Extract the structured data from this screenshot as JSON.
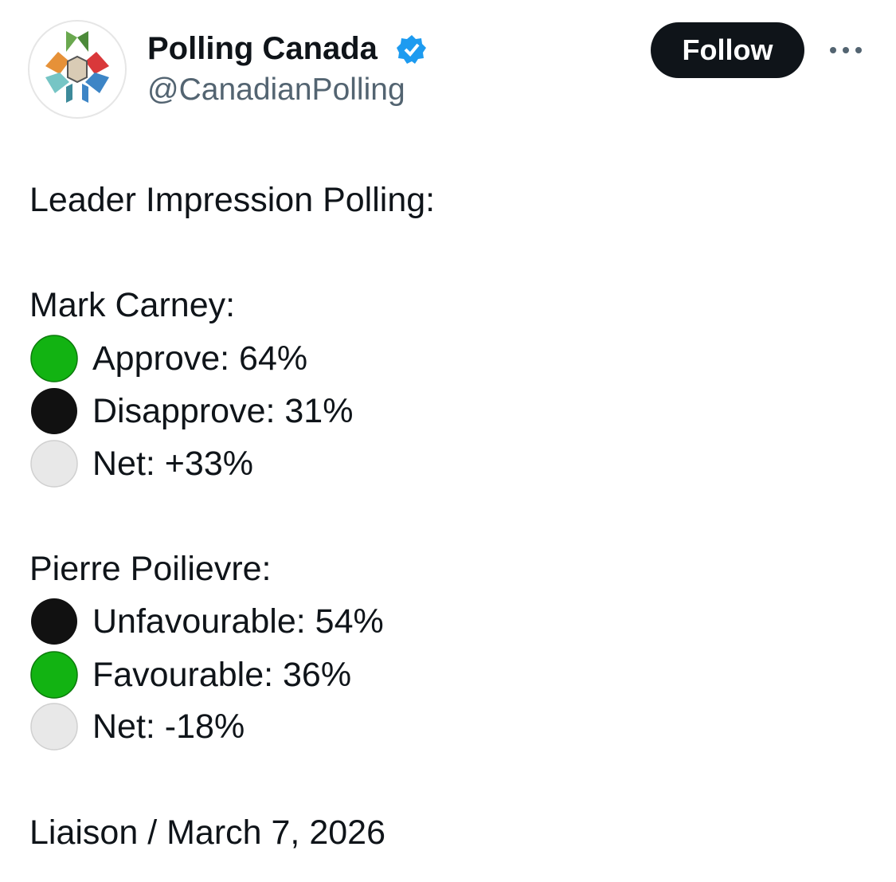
{
  "author": {
    "name": "Polling Canada",
    "handle": "@CanadianPolling"
  },
  "follow_button": "Follow",
  "tweet": {
    "heading": "Leader Impression Polling:",
    "sections": [
      {
        "title": "Mark Carney:",
        "lines": [
          "Approve: 64%",
          "Disapprove: 31%",
          "Net: +33%"
        ]
      },
      {
        "title": "Pierre Poilievre:",
        "lines": [
          "Unfavourable: 54%",
          "Favourable: 36%",
          "Net: -18%"
        ]
      }
    ],
    "source": "Liaison / March 7, 2026"
  }
}
